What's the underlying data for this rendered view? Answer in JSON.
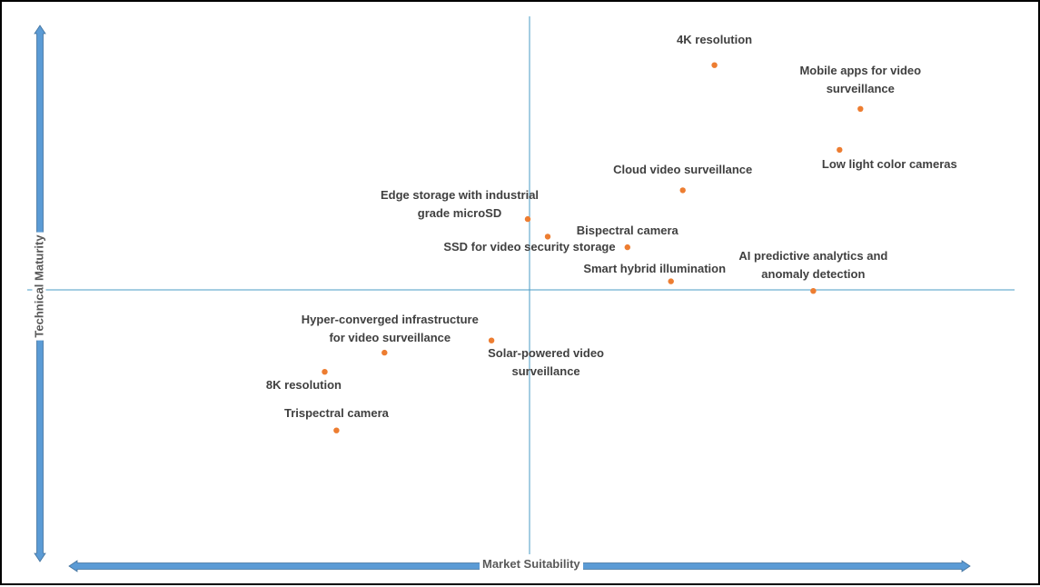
{
  "chart_data": {
    "type": "scatter",
    "title": "",
    "xlabel": "Market Suitability",
    "ylabel": "Technical Maturity",
    "xlim": [
      0,
      10
    ],
    "ylim": [
      0,
      10
    ],
    "quadrant_divider": {
      "x": 5,
      "y": 5
    },
    "grid": false,
    "legend": "none",
    "marker_color": "#ED7D31",
    "axis_color": "#5B9BD5",
    "divider_color": "#4A9BC4",
    "points": [
      {
        "label_lines": [
          "4K resolution"
        ],
        "x": 7.04,
        "y": 9.22
      },
      {
        "label_lines": [
          "Mobile apps for video",
          "surveillance"
        ],
        "x": 8.65,
        "y": 8.4
      },
      {
        "label_lines": [
          "Low light color cameras"
        ],
        "x": 8.42,
        "y": 7.63
      },
      {
        "label_lines": [
          "Cloud video surveillance"
        ],
        "x": 6.69,
        "y": 6.87
      },
      {
        "label_lines": [
          "Edge storage with industrial",
          "grade microSD"
        ],
        "x": 4.98,
        "y": 6.33
      },
      {
        "label_lines": [
          "Bispectral camera"
        ],
        "x": 6.08,
        "y": 5.8
      },
      {
        "label_lines": [
          "SSD for video security storage"
        ],
        "x": 5.2,
        "y": 6.0
      },
      {
        "label_lines": [
          "Smart hybrid illumination"
        ],
        "x": 6.56,
        "y": 5.16
      },
      {
        "label_lines": [
          "AI predictive analytics and",
          "anomaly detection"
        ],
        "x": 8.13,
        "y": 4.98
      },
      {
        "label_lines": [
          "Hyper-converged infrastructure",
          "for video surveillance"
        ],
        "x": 3.4,
        "y": 3.82
      },
      {
        "label_lines": [
          "Solar-powered video",
          "surveillance"
        ],
        "x": 4.58,
        "y": 4.05
      },
      {
        "label_lines": [
          "8K resolution"
        ],
        "x": 2.74,
        "y": 3.46
      },
      {
        "label_lines": [
          "Trispectral camera"
        ],
        "x": 2.87,
        "y": 2.36
      }
    ]
  }
}
